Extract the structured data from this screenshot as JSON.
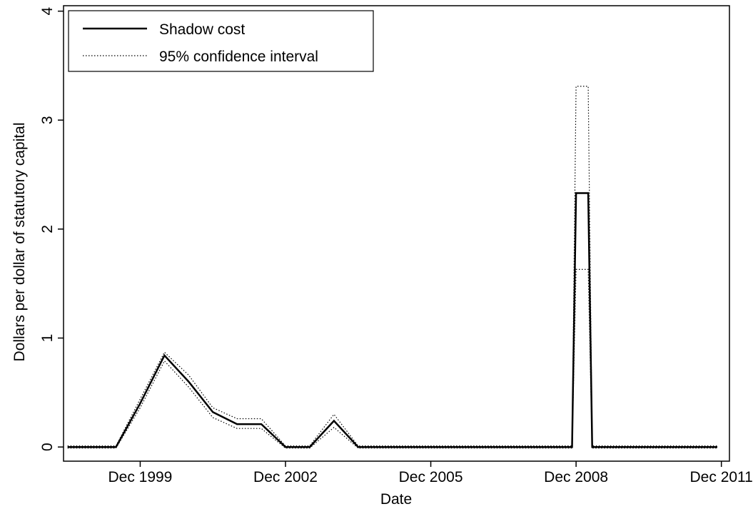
{
  "chart_data": {
    "type": "line",
    "title": "",
    "xlabel": "Date",
    "ylabel": "Dollars per dollar of statutory capital",
    "x_ticks": [
      "Dec 1999",
      "Dec 2002",
      "Dec 2005",
      "Dec 2008",
      "Dec 2011"
    ],
    "y_ticks": [
      "0",
      "1",
      "2",
      "3",
      "4"
    ],
    "xlim": [
      "1998-05",
      "2012-02"
    ],
    "ylim": [
      -0.13,
      4.05
    ],
    "grid": false,
    "legend_position": "top-left",
    "series": [
      {
        "name": "Shadow cost",
        "style": "solid",
        "color": "#000000",
        "points": [
          [
            "1998-06",
            0.0
          ],
          [
            "1999-06",
            0.0
          ],
          [
            "1999-12",
            0.4
          ],
          [
            "2000-06",
            0.84
          ],
          [
            "2000-12",
            0.6
          ],
          [
            "2001-06",
            0.32
          ],
          [
            "2001-12",
            0.21
          ],
          [
            "2002-06",
            0.21
          ],
          [
            "2002-12",
            0.0
          ],
          [
            "2003-06",
            0.0
          ],
          [
            "2003-12",
            0.24
          ],
          [
            "2004-06",
            0.0
          ],
          [
            "2008-11",
            0.0
          ],
          [
            "2008-12",
            2.33
          ],
          [
            "2009-03",
            2.33
          ],
          [
            "2009-04",
            0.0
          ],
          [
            "2011-11",
            0.0
          ]
        ]
      },
      {
        "name": "95% confidence interval",
        "style": "dotted",
        "color": "#000000",
        "bound": "upper",
        "points": [
          [
            "1998-06",
            0.01
          ],
          [
            "1999-06",
            0.01
          ],
          [
            "1999-12",
            0.44
          ],
          [
            "2000-06",
            0.87
          ],
          [
            "2000-12",
            0.66
          ],
          [
            "2001-06",
            0.36
          ],
          [
            "2001-12",
            0.26
          ],
          [
            "2002-06",
            0.26
          ],
          [
            "2002-12",
            0.01
          ],
          [
            "2003-06",
            0.01
          ],
          [
            "2003-12",
            0.3
          ],
          [
            "2004-06",
            0.01
          ],
          [
            "2008-11",
            0.01
          ],
          [
            "2008-12",
            3.31
          ],
          [
            "2009-03",
            3.31
          ],
          [
            "2009-04",
            0.01
          ],
          [
            "2011-11",
            0.01
          ]
        ]
      },
      {
        "name": "95% confidence interval",
        "style": "dotted",
        "color": "#000000",
        "bound": "lower",
        "points": [
          [
            "1998-06",
            -0.01
          ],
          [
            "1999-06",
            -0.01
          ],
          [
            "1999-12",
            0.36
          ],
          [
            "2000-06",
            0.79
          ],
          [
            "2000-12",
            0.55
          ],
          [
            "2001-06",
            0.27
          ],
          [
            "2001-12",
            0.17
          ],
          [
            "2002-06",
            0.17
          ],
          [
            "2002-12",
            -0.01
          ],
          [
            "2003-06",
            -0.01
          ],
          [
            "2003-12",
            0.18
          ],
          [
            "2004-06",
            -0.01
          ],
          [
            "2008-11",
            -0.01
          ],
          [
            "2008-12",
            1.63
          ],
          [
            "2009-03",
            1.63
          ],
          [
            "2009-04",
            -0.01
          ],
          [
            "2011-11",
            -0.01
          ]
        ]
      }
    ],
    "legend": {
      "entries": [
        {
          "label": "Shadow cost",
          "style": "solid"
        },
        {
          "label": "95% confidence interval",
          "style": "dotted"
        }
      ]
    }
  }
}
